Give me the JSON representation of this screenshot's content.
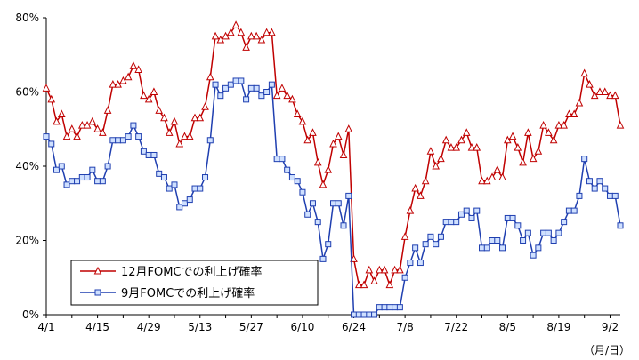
{
  "chart_data": {
    "type": "line",
    "xlabel": "",
    "ylabel": "",
    "x_unit_note": "（月/日）",
    "ylim": [
      0,
      80
    ],
    "yticks": [
      "0%",
      "20%",
      "40%",
      "60%",
      "80%"
    ],
    "x_tick_labels": [
      "4/1",
      "4/15",
      "4/29",
      "5/13",
      "5/27",
      "6/10",
      "6/24",
      "7/8",
      "7/22",
      "8/5",
      "8/19",
      "9/2"
    ],
    "grid": false,
    "legend_position": "lower-left",
    "series": [
      {
        "name": "12月FOMCでの利上げ確率",
        "color": "#c00000",
        "marker": "triangle",
        "values": [
          61,
          58,
          52,
          54,
          48,
          50,
          48,
          51,
          51,
          52,
          50,
          49,
          55,
          62,
          62,
          63,
          64,
          67,
          66,
          59,
          58,
          60,
          55,
          53,
          49,
          52,
          46,
          48,
          48,
          53,
          53,
          56,
          64,
          75,
          74,
          75,
          76,
          78,
          76,
          72,
          75,
          75,
          74,
          76,
          76,
          59,
          61,
          59,
          58,
          54,
          52,
          47,
          49,
          41,
          35,
          39,
          46,
          48,
          43,
          50,
          15,
          8,
          8,
          12,
          9,
          12,
          12,
          8,
          12,
          12,
          21,
          28,
          34,
          32,
          36,
          44,
          40,
          42,
          47,
          45,
          45,
          47,
          49,
          45,
          45,
          36,
          36,
          37,
          39,
          37,
          47,
          48,
          45,
          41,
          49,
          42,
          44,
          51,
          49,
          47,
          51,
          51,
          54,
          54,
          57,
          65,
          62,
          59,
          60,
          60,
          59,
          59,
          51
        ]
      },
      {
        "name": "9月FOMCでの利上げ確率",
        "color": "#1f3fb0",
        "marker": "square",
        "values": [
          48,
          46,
          39,
          40,
          35,
          36,
          36,
          37,
          37,
          39,
          36,
          36,
          40,
          47,
          47,
          47,
          48,
          51,
          48,
          44,
          43,
          43,
          38,
          37,
          34,
          35,
          29,
          30,
          31,
          34,
          34,
          37,
          47,
          62,
          59,
          61,
          62,
          63,
          63,
          58,
          61,
          61,
          59,
          60,
          62,
          42,
          42,
          39,
          37,
          36,
          33,
          27,
          30,
          25,
          15,
          19,
          30,
          30,
          24,
          32,
          0,
          0,
          0,
          0,
          0,
          2,
          2,
          2,
          2,
          2,
          10,
          14,
          18,
          14,
          19,
          21,
          19,
          21,
          25,
          25,
          25,
          27,
          28,
          26,
          28,
          18,
          18,
          20,
          20,
          18,
          26,
          26,
          24,
          20,
          22,
          16,
          18,
          22,
          22,
          20,
          22,
          25,
          28,
          28,
          32,
          42,
          36,
          34,
          36,
          34,
          32,
          32,
          24
        ]
      }
    ]
  }
}
